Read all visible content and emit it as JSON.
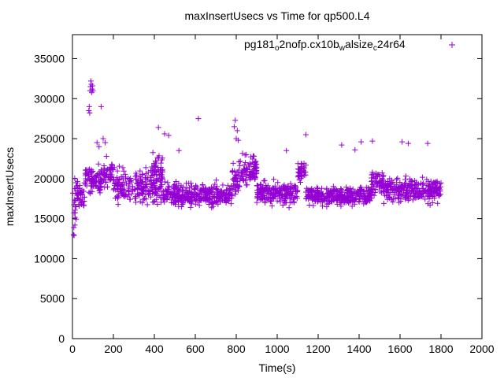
{
  "chart_data": {
    "type": "scatter",
    "title": "maxInsertUsecs vs Time for qp500.L4",
    "xlabel": "Time(s)",
    "ylabel": "maxInsertUsecs",
    "xlim": [
      0,
      2000
    ],
    "ylim": [
      0,
      38000
    ],
    "xticks": [
      0,
      200,
      400,
      600,
      800,
      1000,
      1200,
      1400,
      1600,
      1800,
      2000
    ],
    "yticks": [
      0,
      5000,
      10000,
      15000,
      20000,
      25000,
      30000,
      35000
    ],
    "grid": false,
    "legend_position": "top-right",
    "marker": "plus",
    "series": [
      {
        "name_parts": [
          "pg181",
          "o",
          "2nofp.cx10b",
          "w",
          "alsize",
          "c",
          "24r64"
        ],
        "color": "#9400d3",
        "segments": [
          {
            "x": [
              0,
              20
            ],
            "ymin": 12800,
            "ymax": 21500,
            "n": 18
          },
          {
            "x": [
              20,
              60
            ],
            "ymin": 15500,
            "ymax": 20000,
            "n": 40
          },
          {
            "x": [
              60,
              140
            ],
            "ymin": 17500,
            "ymax": 22500,
            "n": 80
          },
          {
            "x": [
              140,
              200
            ],
            "ymin": 18000,
            "ymax": 23500,
            "n": 50
          },
          {
            "x": [
              200,
              440
            ],
            "ymin": 16000,
            "ymax": 22000,
            "n": 230
          },
          {
            "x": [
              380,
              440
            ],
            "ymin": 19000,
            "ymax": 24000,
            "n": 35
          },
          {
            "x": [
              440,
              780
            ],
            "ymin": 16000,
            "ymax": 20000,
            "n": 330
          },
          {
            "x": [
              780,
              820
            ],
            "ymin": 17500,
            "ymax": 23000,
            "n": 40
          },
          {
            "x": [
              820,
              900
            ],
            "ymin": 18500,
            "ymax": 23500,
            "n": 80
          },
          {
            "x": [
              900,
              1100
            ],
            "ymin": 16200,
            "ymax": 20200,
            "n": 200
          },
          {
            "x": [
              1100,
              1140
            ],
            "ymin": 18500,
            "ymax": 22500,
            "n": 40
          },
          {
            "x": [
              1140,
              1460
            ],
            "ymin": 16200,
            "ymax": 19500,
            "n": 320
          },
          {
            "x": [
              1460,
              1520
            ],
            "ymin": 17500,
            "ymax": 21500,
            "n": 60
          },
          {
            "x": [
              1520,
              1800
            ],
            "ymin": 16500,
            "ymax": 20500,
            "n": 280
          }
        ],
        "points": [
          {
            "x": 5,
            "y": 13000
          },
          {
            "x": 8,
            "y": 12900
          },
          {
            "x": 12,
            "y": 14200
          },
          {
            "x": 80,
            "y": 28500
          },
          {
            "x": 82,
            "y": 29000
          },
          {
            "x": 84,
            "y": 28200
          },
          {
            "x": 86,
            "y": 31000
          },
          {
            "x": 88,
            "y": 31500
          },
          {
            "x": 90,
            "y": 32200
          },
          {
            "x": 92,
            "y": 31800
          },
          {
            "x": 94,
            "y": 30800
          },
          {
            "x": 96,
            "y": 31200
          },
          {
            "x": 98,
            "y": 31600
          },
          {
            "x": 100,
            "y": 31000
          },
          {
            "x": 120,
            "y": 24500
          },
          {
            "x": 130,
            "y": 24000
          },
          {
            "x": 140,
            "y": 29000
          },
          {
            "x": 150,
            "y": 25000
          },
          {
            "x": 160,
            "y": 24500
          },
          {
            "x": 420,
            "y": 26400
          },
          {
            "x": 450,
            "y": 25600
          },
          {
            "x": 470,
            "y": 25400
          },
          {
            "x": 520,
            "y": 23500
          },
          {
            "x": 615,
            "y": 27500
          },
          {
            "x": 790,
            "y": 26500
          },
          {
            "x": 795,
            "y": 27300
          },
          {
            "x": 800,
            "y": 25000
          },
          {
            "x": 805,
            "y": 26000
          },
          {
            "x": 810,
            "y": 24800
          },
          {
            "x": 850,
            "y": 23000
          },
          {
            "x": 1045,
            "y": 23500
          },
          {
            "x": 1140,
            "y": 25500
          },
          {
            "x": 1315,
            "y": 24200
          },
          {
            "x": 1410,
            "y": 24600
          },
          {
            "x": 1465,
            "y": 24700
          },
          {
            "x": 1610,
            "y": 24600
          },
          {
            "x": 1640,
            "y": 24400
          },
          {
            "x": 1735,
            "y": 24400
          },
          {
            "x": 1380,
            "y": 23600
          }
        ]
      }
    ]
  }
}
